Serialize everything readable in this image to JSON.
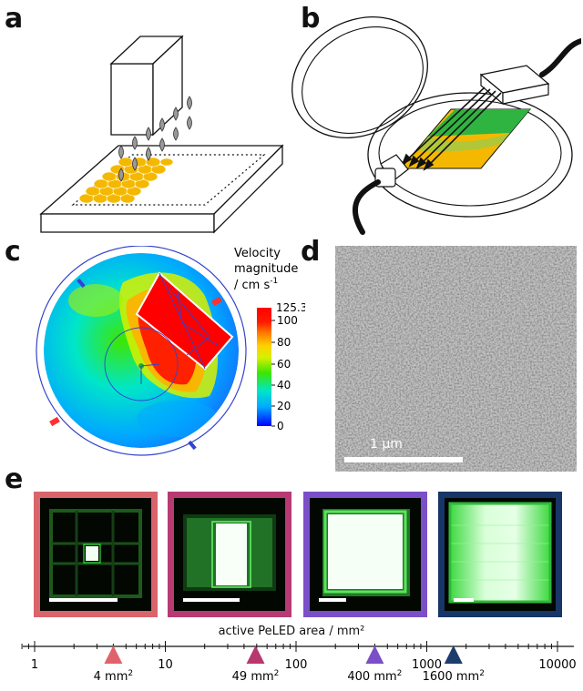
{
  "panels": {
    "a": "a",
    "b": "b",
    "c": "c",
    "d": "d",
    "e": "e"
  },
  "colorbar": {
    "title_line1": "Velocity",
    "title_line2": "magnitude",
    "title_line3": "/ cm s",
    "title_sup": "-1",
    "max_label": "125.344",
    "ticks": [
      "100",
      "80",
      "60",
      "40",
      "20",
      "0"
    ],
    "colors": [
      "#0000ff",
      "#00a8ff",
      "#00e6c8",
      "#3de600",
      "#d8f000",
      "#ffd000",
      "#ff8000",
      "#ff1a00",
      "#ff0000"
    ]
  },
  "sem": {
    "scalebar_label": "1 µm"
  },
  "photos": [
    {
      "frame_color": "#d9646b"
    },
    {
      "frame_color": "#b73a73"
    },
    {
      "frame_color": "#7a4fc8"
    },
    {
      "frame_color": "#173566"
    }
  ],
  "axis": {
    "title": "active PeLED area / mm²",
    "tick_labels": [
      "1",
      "10",
      "100",
      "1000",
      "10000"
    ],
    "markers": [
      {
        "value": 4,
        "label_num": "4 mm",
        "label_sup": "2",
        "color": "#e0636b"
      },
      {
        "value": 49,
        "label_num": "49 mm",
        "label_sup": "2",
        "color": "#b7386f"
      },
      {
        "value": 400,
        "label_num": "400 mm",
        "label_sup": "2",
        "color": "#7a4fc8"
      },
      {
        "value": 1600,
        "label_num": "1600 mm",
        "label_sup": "2",
        "color": "#1c3c6b"
      }
    ]
  }
}
